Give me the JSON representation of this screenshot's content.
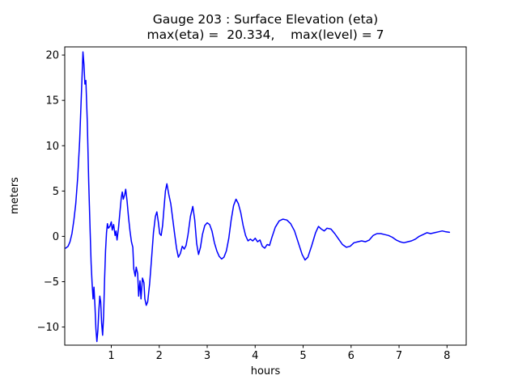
{
  "figure": {
    "title_line1": "Gauge 203 : Surface Elevation (eta)",
    "title_line2": "max(eta) =  20.334,    max(level) = 7",
    "xlabel": "hours",
    "ylabel": "meters"
  },
  "chart_data": {
    "type": "line",
    "title": "Gauge 203 : Surface Elevation (eta)",
    "subtitle": "max(eta) =  20.334,    max(level) = 7",
    "xlabel": "hours",
    "ylabel": "meters",
    "xlim": [
      0.03,
      8.4
    ],
    "ylim": [
      -12.0,
      20.9
    ],
    "x_ticks": [
      1,
      2,
      3,
      4,
      5,
      6,
      7,
      8
    ],
    "y_ticks": [
      -10,
      -5,
      0,
      5,
      10,
      15,
      20
    ],
    "grid": false,
    "legend": null,
    "line_color": "#0000ff",
    "annotations": {
      "max_eta": 20.334,
      "max_level": 7
    },
    "series": [
      {
        "name": "eta",
        "points": [
          [
            0.05,
            -1.3
          ],
          [
            0.1,
            -1.1
          ],
          [
            0.14,
            -0.6
          ],
          [
            0.18,
            0.3
          ],
          [
            0.22,
            1.8
          ],
          [
            0.26,
            3.6
          ],
          [
            0.3,
            6.5
          ],
          [
            0.34,
            10.5
          ],
          [
            0.38,
            16.0
          ],
          [
            0.41,
            20.334
          ],
          [
            0.43,
            19.0
          ],
          [
            0.45,
            16.8
          ],
          [
            0.47,
            17.2
          ],
          [
            0.5,
            12.5
          ],
          [
            0.53,
            6.0
          ],
          [
            0.56,
            0.5
          ],
          [
            0.58,
            -3.0
          ],
          [
            0.6,
            -5.2
          ],
          [
            0.62,
            -6.9
          ],
          [
            0.64,
            -5.6
          ],
          [
            0.66,
            -7.6
          ],
          [
            0.68,
            -10.2
          ],
          [
            0.7,
            -11.6
          ],
          [
            0.72,
            -10.4
          ],
          [
            0.74,
            -8.2
          ],
          [
            0.76,
            -6.6
          ],
          [
            0.78,
            -7.2
          ],
          [
            0.8,
            -9.6
          ],
          [
            0.82,
            -10.9
          ],
          [
            0.84,
            -8.8
          ],
          [
            0.86,
            -4.8
          ],
          [
            0.88,
            -1.6
          ],
          [
            0.9,
            0.4
          ],
          [
            0.92,
            1.4
          ],
          [
            0.94,
            0.9
          ],
          [
            0.97,
            1.1
          ],
          [
            1.0,
            1.6
          ],
          [
            1.02,
            0.7
          ],
          [
            1.05,
            1.3
          ],
          [
            1.08,
            0.1
          ],
          [
            1.1,
            0.6
          ],
          [
            1.12,
            -0.4
          ],
          [
            1.15,
            0.9
          ],
          [
            1.18,
            2.6
          ],
          [
            1.21,
            4.3
          ],
          [
            1.23,
            4.9
          ],
          [
            1.25,
            4.1
          ],
          [
            1.28,
            4.6
          ],
          [
            1.3,
            5.2
          ],
          [
            1.33,
            3.9
          ],
          [
            1.36,
            2.1
          ],
          [
            1.39,
            0.6
          ],
          [
            1.42,
            -0.6
          ],
          [
            1.45,
            -1.2
          ],
          [
            1.47,
            -3.6
          ],
          [
            1.5,
            -4.4
          ],
          [
            1.52,
            -3.4
          ],
          [
            1.55,
            -4.1
          ],
          [
            1.57,
            -6.6
          ],
          [
            1.6,
            -4.9
          ],
          [
            1.62,
            -6.9
          ],
          [
            1.65,
            -4.6
          ],
          [
            1.68,
            -5.1
          ],
          [
            1.7,
            -6.9
          ],
          [
            1.73,
            -7.6
          ],
          [
            1.76,
            -7.2
          ],
          [
            1.8,
            -5.2
          ],
          [
            1.84,
            -2.4
          ],
          [
            1.88,
            0.4
          ],
          [
            1.92,
            2.2
          ],
          [
            1.95,
            2.7
          ],
          [
            1.98,
            1.6
          ],
          [
            2.01,
            0.3
          ],
          [
            2.04,
            0.1
          ],
          [
            2.07,
            1.2
          ],
          [
            2.1,
            3.2
          ],
          [
            2.13,
            5.0
          ],
          [
            2.16,
            5.8
          ],
          [
            2.2,
            4.6
          ],
          [
            2.24,
            3.6
          ],
          [
            2.28,
            2.0
          ],
          [
            2.32,
            0.3
          ],
          [
            2.36,
            -1.3
          ],
          [
            2.4,
            -2.3
          ],
          [
            2.44,
            -1.9
          ],
          [
            2.48,
            -1.1
          ],
          [
            2.52,
            -1.4
          ],
          [
            2.56,
            -1.0
          ],
          [
            2.6,
            0.2
          ],
          [
            2.65,
            2.2
          ],
          [
            2.7,
            3.3
          ],
          [
            2.74,
            1.8
          ],
          [
            2.78,
            -0.8
          ],
          [
            2.82,
            -2.0
          ],
          [
            2.86,
            -1.2
          ],
          [
            2.9,
            0.2
          ],
          [
            2.95,
            1.2
          ],
          [
            3.0,
            1.5
          ],
          [
            3.05,
            1.3
          ],
          [
            3.1,
            0.6
          ],
          [
            3.15,
            -0.7
          ],
          [
            3.2,
            -1.6
          ],
          [
            3.25,
            -2.2
          ],
          [
            3.3,
            -2.5
          ],
          [
            3.35,
            -2.3
          ],
          [
            3.4,
            -1.6
          ],
          [
            3.45,
            -0.2
          ],
          [
            3.5,
            1.8
          ],
          [
            3.55,
            3.4
          ],
          [
            3.6,
            4.1
          ],
          [
            3.65,
            3.6
          ],
          [
            3.7,
            2.6
          ],
          [
            3.75,
            1.2
          ],
          [
            3.8,
            0.1
          ],
          [
            3.85,
            -0.5
          ],
          [
            3.9,
            -0.3
          ],
          [
            3.95,
            -0.5
          ],
          [
            4.0,
            -0.2
          ],
          [
            4.05,
            -0.6
          ],
          [
            4.1,
            -0.4
          ],
          [
            4.15,
            -1.1
          ],
          [
            4.2,
            -1.3
          ],
          [
            4.25,
            -0.9
          ],
          [
            4.3,
            -1.0
          ],
          [
            4.35,
            -0.1
          ],
          [
            4.42,
            1.0
          ],
          [
            4.5,
            1.7
          ],
          [
            4.58,
            1.9
          ],
          [
            4.66,
            1.8
          ],
          [
            4.74,
            1.4
          ],
          [
            4.82,
            0.6
          ],
          [
            4.9,
            -0.7
          ],
          [
            4.98,
            -2.0
          ],
          [
            5.04,
            -2.6
          ],
          [
            5.1,
            -2.3
          ],
          [
            5.18,
            -1.0
          ],
          [
            5.26,
            0.4
          ],
          [
            5.32,
            1.1
          ],
          [
            5.38,
            0.8
          ],
          [
            5.44,
            0.6
          ],
          [
            5.5,
            0.9
          ],
          [
            5.58,
            0.8
          ],
          [
            5.66,
            0.3
          ],
          [
            5.74,
            -0.3
          ],
          [
            5.82,
            -0.9
          ],
          [
            5.9,
            -1.2
          ],
          [
            5.98,
            -1.1
          ],
          [
            6.06,
            -0.7
          ],
          [
            6.14,
            -0.6
          ],
          [
            6.22,
            -0.5
          ],
          [
            6.3,
            -0.6
          ],
          [
            6.38,
            -0.4
          ],
          [
            6.46,
            0.1
          ],
          [
            6.54,
            0.3
          ],
          [
            6.62,
            0.3
          ],
          [
            6.7,
            0.2
          ],
          [
            6.78,
            0.1
          ],
          [
            6.86,
            -0.1
          ],
          [
            6.94,
            -0.4
          ],
          [
            7.02,
            -0.6
          ],
          [
            7.1,
            -0.7
          ],
          [
            7.18,
            -0.6
          ],
          [
            7.26,
            -0.5
          ],
          [
            7.34,
            -0.3
          ],
          [
            7.42,
            0.0
          ],
          [
            7.5,
            0.2
          ],
          [
            7.58,
            0.4
          ],
          [
            7.66,
            0.3
          ],
          [
            7.74,
            0.4
          ],
          [
            7.82,
            0.5
          ],
          [
            7.9,
            0.6
          ],
          [
            7.98,
            0.5
          ],
          [
            8.05,
            0.45
          ]
        ]
      }
    ]
  }
}
